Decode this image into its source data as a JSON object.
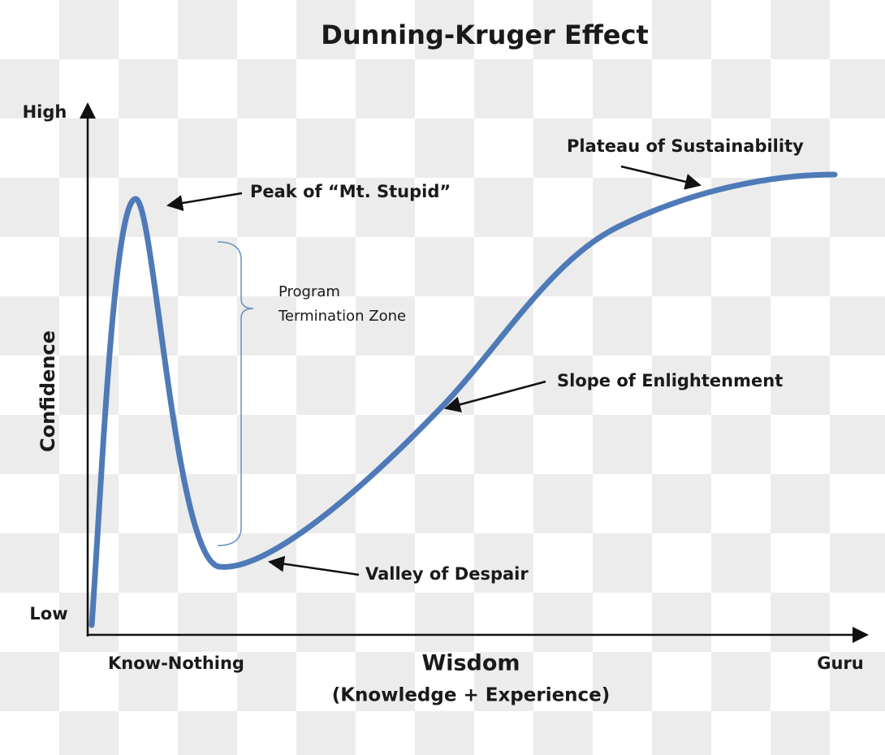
{
  "title": "Dunning-Kruger Effect",
  "axes": {
    "y_high": "High",
    "y_low": "Low",
    "y_label": "Confidence",
    "x_left": "Know-Nothing",
    "x_label": "Wisdom",
    "x_sublabel": "(Knowledge  +  Experience)",
    "x_right": "Guru"
  },
  "annotations": {
    "peak": "Peak of “Mt. Stupid”",
    "plateau": "Plateau of Sustainability",
    "slope": "Slope of Enlightenment",
    "valley": "Valley of Despair"
  },
  "zone": {
    "lines": [
      "Program",
      "Termination Zone"
    ]
  }
}
